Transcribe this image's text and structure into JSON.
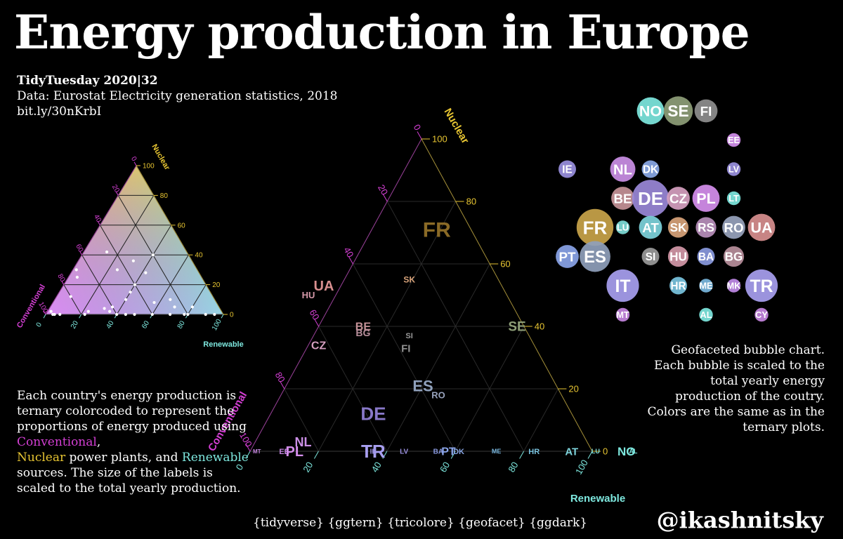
{
  "header": {
    "title": "Energy production in Europe",
    "tag": "TidyTuesday 2020|32",
    "source": "Data: Eurostat Electricity generation statistics, 2018",
    "link": "bit.ly/30nKrbI"
  },
  "note_left": {
    "p1": "Each country's energy production is ternary colorcoded to represent the proportions of energy produced using ",
    "conv": "Conventional",
    "p2": ",",
    "nuc": "Nuclear",
    "p3": " power plants, and ",
    "ren": "Renewable",
    "p4": " sources. The size of the labels is scaled to the total yearly production."
  },
  "note_right": "Geofaceted bubble chart. Each bubble is scaled to the total yearly energy production of the coutry. Colors are the same as in the ternary plots.",
  "packages": "{tidyverse} {ggtern} {tricolore} {geofacet} {ggdark}",
  "handle": "@ikashnitsky",
  "colors": {
    "conventional": "#d43fd4",
    "nuclear": "#e7c532",
    "renewable": "#7ee8df"
  },
  "chart_data": [
    {
      "type": "scatter",
      "subtype": "ternary-legend",
      "axes": {
        "top": "Nuclear",
        "left": "Conventional",
        "right": "Renewable"
      },
      "ticks": [
        0,
        20,
        40,
        60,
        80,
        100
      ],
      "points": [
        [
          0.96,
          0.02,
          0.02
        ],
        [
          0.96,
          0,
          0.04
        ],
        [
          0.95,
          0,
          0.05
        ],
        [
          0.92,
          0,
          0.08
        ],
        [
          0.75,
          0.02,
          0.23
        ],
        [
          0.78,
          0,
          0.22
        ],
        [
          0.2,
          0,
          0.8
        ],
        [
          0.65,
          0.04,
          0.31
        ],
        [
          0.55,
          0,
          0.45
        ],
        [
          0.5,
          0,
          0.5
        ],
        [
          0.4,
          0,
          0.6
        ],
        [
          0.3,
          0,
          0.7
        ],
        [
          0.22,
          0,
          0.78
        ],
        [
          0.1,
          0,
          0.9
        ],
        [
          0.05,
          0,
          0.95
        ],
        [
          0.6,
          0.05,
          0.35
        ],
        [
          0.63,
          0.02,
          0.35
        ],
        [
          0.45,
          0.3,
          0.25
        ],
        [
          0.3,
          0.28,
          0.42
        ],
        [
          0.33,
          0.36,
          0.31
        ],
        [
          0.45,
          0.15,
          0.4
        ],
        [
          0.5,
          0.1,
          0.4
        ],
        [
          0.25,
          0.1,
          0.65
        ],
        [
          0.2,
          0.4,
          0.4
        ],
        [
          0.68,
          0.3,
          0.02
        ],
        [
          0.7,
          0.25,
          0.05
        ],
        [
          0.15,
          0.05,
          0.8
        ],
        [
          0.4,
          0.2,
          0.4
        ],
        [
          0.35,
          0.08,
          0.57
        ],
        [
          0.25,
          0.05,
          0.7
        ],
        [
          0.45,
          0.42,
          0.13
        ],
        [
          0.8,
          0.12,
          0.08
        ],
        [
          0.6,
          0,
          0.4
        ]
      ]
    },
    {
      "type": "scatter",
      "subtype": "ternary-labels",
      "axes": {
        "top": "Nuclear",
        "left": "Conventional",
        "right": "Renewable"
      },
      "ticks": [
        0,
        20,
        40,
        60,
        80,
        100
      ],
      "labels": [
        {
          "text": "FR",
          "c": 0.1,
          "n": 0.71,
          "r": 0.19,
          "fs": 30,
          "col": "#8a6a26"
        },
        {
          "text": "SK",
          "c": 0.26,
          "n": 0.55,
          "r": 0.19,
          "fs": 12,
          "col": "#d8a37a"
        },
        {
          "text": "UA",
          "c": 0.52,
          "n": 0.53,
          "r": -0.05,
          "fs": 20,
          "col": "#d88f8f"
        },
        {
          "text": "HU",
          "c": 0.58,
          "n": 0.5,
          "r": -0.08,
          "fs": 13,
          "col": "#d498a8"
        },
        {
          "text": "SE",
          "c": 0.02,
          "n": 0.4,
          "r": 0.58,
          "fs": 19,
          "col": "#8e9e78"
        },
        {
          "text": "BE",
          "c": 0.47,
          "n": 0.4,
          "r": 0.13,
          "fs": 16,
          "col": "#c59298"
        },
        {
          "text": "BG",
          "c": 0.48,
          "n": 0.38,
          "r": 0.14,
          "fs": 14,
          "col": "#b88f9c"
        },
        {
          "text": "SI",
          "c": 0.35,
          "n": 0.37,
          "r": 0.28,
          "fs": 11,
          "col": "#9a9a9a"
        },
        {
          "text": "CZ",
          "c": 0.63,
          "n": 0.34,
          "r": 0.03,
          "fs": 16,
          "col": "#d69fc0"
        },
        {
          "text": "FI",
          "c": 0.38,
          "n": 0.33,
          "r": 0.29,
          "fs": 15,
          "col": "#8f8f8f"
        },
        {
          "text": "ES",
          "c": 0.39,
          "n": 0.21,
          "r": 0.4,
          "fs": 22,
          "col": "#8fa0bb"
        },
        {
          "text": "RO",
          "c": 0.36,
          "n": 0.18,
          "r": 0.46,
          "fs": 13,
          "col": "#98a3bd"
        },
        {
          "text": "DE",
          "c": 0.58,
          "n": 0.12,
          "r": 0.3,
          "fs": 26,
          "col": "#8878c8"
        },
        {
          "text": "NL",
          "c": 0.83,
          "n": 0.03,
          "r": 0.14,
          "fs": 18,
          "col": "#cb8fe6"
        },
        {
          "text": "MT",
          "c": 0.98,
          "n": 0,
          "r": 0.02,
          "fs": 8,
          "col": "#c586e0"
        },
        {
          "text": "EE",
          "c": 0.9,
          "n": 0,
          "r": 0.1,
          "fs": 11,
          "col": "#c486e0"
        },
        {
          "text": "PL",
          "c": 0.87,
          "n": 0,
          "r": 0.13,
          "fs": 20,
          "col": "#d68fee"
        },
        {
          "text": "TR",
          "c": 0.64,
          "n": 0,
          "r": 0.36,
          "fs": 26,
          "col": "#a89ff0"
        },
        {
          "text": "IE",
          "c": 0.64,
          "n": 0,
          "r": 0.36,
          "fs": 10,
          "col": "#9a90e0"
        },
        {
          "text": "LV",
          "c": 0.55,
          "n": 0,
          "r": 0.45,
          "fs": 10,
          "col": "#9a90e0"
        },
        {
          "text": "BA",
          "c": 0.45,
          "n": 0,
          "r": 0.55,
          "fs": 10,
          "col": "#8a9ae0"
        },
        {
          "text": "PT",
          "c": 0.42,
          "n": 0,
          "r": 0.58,
          "fs": 16,
          "col": "#8aa4e8"
        },
        {
          "text": "DK",
          "c": 0.39,
          "n": 0,
          "r": 0.61,
          "fs": 11,
          "col": "#8aa8e6"
        },
        {
          "text": "ME",
          "c": 0.28,
          "n": 0,
          "r": 0.72,
          "fs": 9,
          "col": "#7ab8e0"
        },
        {
          "text": "HR",
          "c": 0.17,
          "n": 0,
          "r": 0.83,
          "fs": 11,
          "col": "#7ac4e0"
        },
        {
          "text": "AT",
          "c": 0.06,
          "n": 0,
          "r": 0.94,
          "fs": 15,
          "col": "#7ed4dc"
        },
        {
          "text": "LU",
          "c": -0.01,
          "n": 0,
          "r": 1.01,
          "fs": 9,
          "col": "#7edcd8"
        },
        {
          "text": "NO",
          "c": -0.1,
          "n": 0,
          "r": 1.1,
          "fs": 17,
          "col": "#7ee8df"
        },
        {
          "text": "AL",
          "c": -0.12,
          "n": 0,
          "r": 1.12,
          "fs": 9,
          "col": "#7ee8df"
        }
      ]
    },
    {
      "type": "scatter",
      "subtype": "geofaceted-bubbles",
      "bubbles": [
        {
          "text": "NO",
          "row": 0,
          "col": 4,
          "size": 6,
          "color": "#7ee8df"
        },
        {
          "text": "SE",
          "row": 0,
          "col": 5,
          "size": 7,
          "color": "#8e9e78"
        },
        {
          "text": "FI",
          "row": 0,
          "col": 6,
          "size": 4,
          "color": "#8f8f8f"
        },
        {
          "text": "EE",
          "row": 1,
          "col": 7,
          "size": 1,
          "color": "#d48fee"
        },
        {
          "text": "IE",
          "row": 2,
          "col": 1,
          "size": 2,
          "color": "#9a90e0"
        },
        {
          "text": "NL",
          "row": 2,
          "col": 3,
          "size": 5,
          "color": "#cb8fe6"
        },
        {
          "text": "DK",
          "row": 2,
          "col": 4,
          "size": 2,
          "color": "#8aa8e6"
        },
        {
          "text": "LV",
          "row": 2,
          "col": 7,
          "size": 1,
          "color": "#9a90e0"
        },
        {
          "text": "BE",
          "row": 3,
          "col": 3,
          "size": 4,
          "color": "#c59298"
        },
        {
          "text": "DE",
          "row": 3,
          "col": 4,
          "size": 12,
          "color": "#9a88d8"
        },
        {
          "text": "CZ",
          "row": 3,
          "col": 5,
          "size": 4,
          "color": "#d69fc0"
        },
        {
          "text": "PL",
          "row": 3,
          "col": 6,
          "size": 6,
          "color": "#d68fee"
        },
        {
          "text": "LT",
          "row": 3,
          "col": 7,
          "size": 1,
          "color": "#7ee8df"
        },
        {
          "text": "FR",
          "row": 4,
          "col": 2,
          "size": 12,
          "color": "#c9a44a"
        },
        {
          "text": "LU",
          "row": 4,
          "col": 3,
          "size": 1,
          "color": "#7edcd8"
        },
        {
          "text": "AT",
          "row": 4,
          "col": 4,
          "size": 4,
          "color": "#7ed4dc"
        },
        {
          "text": "SK",
          "row": 4,
          "col": 5,
          "size": 3,
          "color": "#d8a37a"
        },
        {
          "text": "RS",
          "row": 4,
          "col": 6,
          "size": 3,
          "color": "#b88fbc"
        },
        {
          "text": "RO",
          "row": 4,
          "col": 7,
          "size": 4,
          "color": "#98a3bd"
        },
        {
          "text": "UA",
          "row": 4,
          "col": 8,
          "size": 6,
          "color": "#d88f8f"
        },
        {
          "text": "PT",
          "row": 5,
          "col": 1,
          "size": 4,
          "color": "#8aa4e8"
        },
        {
          "text": "ES",
          "row": 5,
          "col": 2,
          "size": 8,
          "color": "#8fa0bb"
        },
        {
          "text": "SI",
          "row": 5,
          "col": 4,
          "size": 2,
          "color": "#9a9a9a"
        },
        {
          "text": "HU",
          "row": 5,
          "col": 5,
          "size": 3,
          "color": "#d498a8"
        },
        {
          "text": "BA",
          "row": 5,
          "col": 6,
          "size": 2,
          "color": "#8a9ae0"
        },
        {
          "text": "BG",
          "row": 5,
          "col": 7,
          "size": 3,
          "color": "#b88f9c"
        },
        {
          "text": "IT",
          "row": 6,
          "col": 3,
          "size": 9,
          "color": "#a89ff0"
        },
        {
          "text": "HR",
          "row": 6,
          "col": 5,
          "size": 2,
          "color": "#7ac4e0"
        },
        {
          "text": "ME",
          "row": 6,
          "col": 6,
          "size": 1,
          "color": "#7ab8e0"
        },
        {
          "text": "MK",
          "row": 6,
          "col": 7,
          "size": 1,
          "color": "#c08ae8"
        },
        {
          "text": "TR",
          "row": 6,
          "col": 8,
          "size": 9,
          "color": "#a89ff0"
        },
        {
          "text": "MT",
          "row": 7,
          "col": 3,
          "size": 1,
          "color": "#c586e0"
        },
        {
          "text": "AL",
          "row": 7,
          "col": 6,
          "size": 1,
          "color": "#7ee8df"
        },
        {
          "text": "CY",
          "row": 7,
          "col": 8,
          "size": 1,
          "color": "#c586e0"
        }
      ]
    }
  ]
}
